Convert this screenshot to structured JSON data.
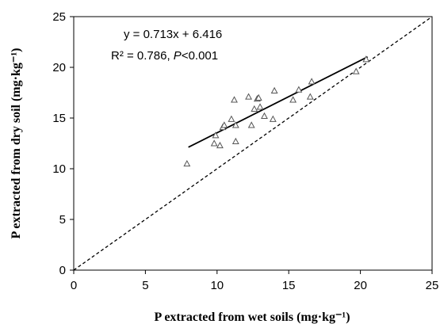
{
  "chart_data": {
    "type": "scatter",
    "xlabel": "P extracted from wet soils (mg·kg⁻¹)",
    "ylabel": "P extracted from dry soil (mg·kg⁻¹)",
    "xlim": [
      0,
      25
    ],
    "ylim": [
      0,
      25
    ],
    "xticks": [
      0,
      5,
      10,
      15,
      20,
      25
    ],
    "yticks": [
      0,
      5,
      10,
      15,
      20,
      25
    ],
    "x_tick_labels": [
      "0",
      "5",
      "10",
      "15",
      "20",
      "25"
    ],
    "y_tick_labels": [
      "0",
      "5",
      "10",
      "15",
      "20",
      "25"
    ],
    "grid": false,
    "marker": "triangle-open",
    "points": [
      {
        "x": 7.9,
        "y": 10.5
      },
      {
        "x": 9.8,
        "y": 12.5
      },
      {
        "x": 9.9,
        "y": 13.3
      },
      {
        "x": 10.2,
        "y": 12.3
      },
      {
        "x": 10.4,
        "y": 14.1
      },
      {
        "x": 10.5,
        "y": 14.3
      },
      {
        "x": 11.0,
        "y": 14.9
      },
      {
        "x": 11.2,
        "y": 16.8
      },
      {
        "x": 11.3,
        "y": 14.3
      },
      {
        "x": 11.3,
        "y": 12.7
      },
      {
        "x": 12.2,
        "y": 17.1
      },
      {
        "x": 12.4,
        "y": 14.3
      },
      {
        "x": 12.6,
        "y": 15.9
      },
      {
        "x": 12.8,
        "y": 16.9
      },
      {
        "x": 12.9,
        "y": 17.0
      },
      {
        "x": 13.0,
        "y": 16.1
      },
      {
        "x": 13.3,
        "y": 15.2
      },
      {
        "x": 13.9,
        "y": 14.9
      },
      {
        "x": 14.0,
        "y": 17.7
      },
      {
        "x": 15.3,
        "y": 16.8
      },
      {
        "x": 15.7,
        "y": 17.8
      },
      {
        "x": 16.5,
        "y": 17.1
      },
      {
        "x": 16.6,
        "y": 18.6
      },
      {
        "x": 19.7,
        "y": 19.6
      },
      {
        "x": 20.4,
        "y": 20.8
      }
    ],
    "fit_line": {
      "slope": 0.713,
      "intercept": 6.416,
      "x_range": [
        8.0,
        20.5
      ],
      "style": "solid"
    },
    "reference_line": {
      "slope": 1,
      "intercept": 0,
      "x_range": [
        0,
        25
      ],
      "style": "dashed"
    },
    "annotation_line1": "y = 0.713x + 6.416",
    "annotation_r2": "R² = 0.786, ",
    "annotation_p": "P",
    "annotation_p_rest": "<0.001"
  }
}
